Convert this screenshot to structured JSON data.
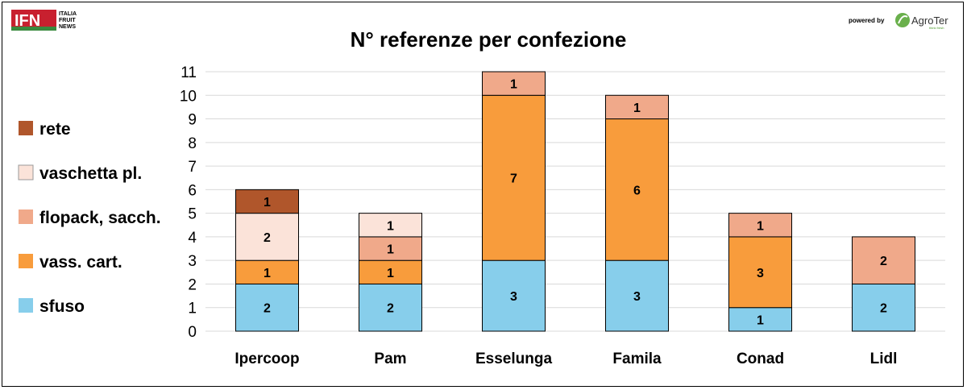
{
  "logos": {
    "ifn_text": "IFN",
    "ifn_lines": [
      "ITALIA",
      "FRUIT",
      "NEWS"
    ],
    "powered_by": "powered by",
    "agroter": "AgroTer",
    "agroter_tagline": "think fresh"
  },
  "colors": {
    "sfuso": "#87CEEB",
    "vass_cart": "#F89C3C",
    "flopack": "#F0A98A",
    "vaschetta": "#FBE3D9",
    "rete": "#B0562B",
    "ifn_red": "#C8202F",
    "ifn_green": "#3A8A3E",
    "gridline": "#d9d9d9"
  },
  "chart_data": {
    "type": "bar",
    "stacked": true,
    "title": "N° referenze per confezione",
    "categories": [
      "Ipercoop",
      "Pam",
      "Esselunga",
      "Famila",
      "Conad",
      "Lidl"
    ],
    "ylim": [
      0,
      11
    ],
    "yticks": [
      0,
      1,
      2,
      3,
      4,
      5,
      6,
      7,
      8,
      9,
      10,
      11
    ],
    "grid": true,
    "legend_position": "left",
    "series": [
      {
        "name": "sfuso",
        "key": "sfuso",
        "values": [
          2,
          2,
          3,
          3,
          1,
          2
        ]
      },
      {
        "name": "vass. cart.",
        "key": "vass_cart",
        "values": [
          1,
          1,
          7,
          6,
          3,
          0
        ]
      },
      {
        "name": "flopack, sacch.",
        "key": "flopack",
        "values": [
          0,
          1,
          1,
          1,
          1,
          2
        ]
      },
      {
        "name": "vaschetta pl.",
        "key": "vaschetta",
        "values": [
          2,
          1,
          0,
          0,
          0,
          0
        ]
      },
      {
        "name": "rete",
        "key": "rete",
        "values": [
          1,
          0,
          0,
          0,
          0,
          0
        ]
      }
    ]
  }
}
